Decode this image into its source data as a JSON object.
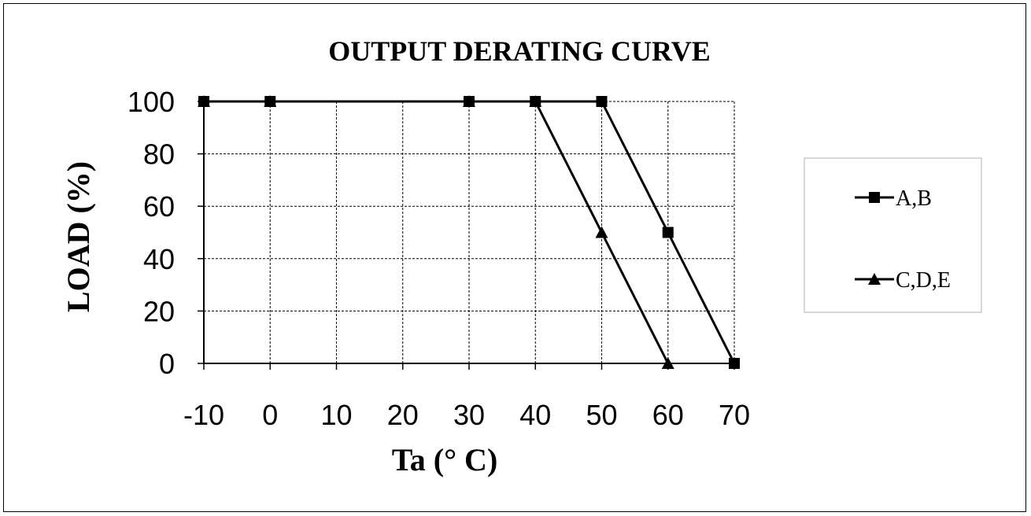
{
  "chart_data": {
    "type": "line",
    "title": "OUTPUT DERATING CURVE",
    "xlabel": "Ta (° C)",
    "ylabel": "LOAD (%)",
    "x_categories": [
      "-10",
      "0",
      "10",
      "20",
      "30",
      "40",
      "50",
      "60",
      "70"
    ],
    "ylim": [
      0,
      100
    ],
    "y_ticks": [
      "0",
      "20",
      "40",
      "60",
      "80",
      "100"
    ],
    "grid": true,
    "legend_position": "right",
    "series": [
      {
        "name": "A,B",
        "marker": "square",
        "x": [
          -10,
          0,
          30,
          40,
          50,
          60,
          70
        ],
        "y": [
          100,
          100,
          100,
          100,
          100,
          50,
          0
        ]
      },
      {
        "name": "C,D,E",
        "marker": "triangle",
        "x": [
          -10,
          0,
          30,
          40,
          50,
          60
        ],
        "y": [
          100,
          100,
          100,
          100,
          50,
          0
        ]
      }
    ],
    "colors": {
      "line": "#000000",
      "grid": "#000000",
      "background": "#ffffff"
    }
  }
}
